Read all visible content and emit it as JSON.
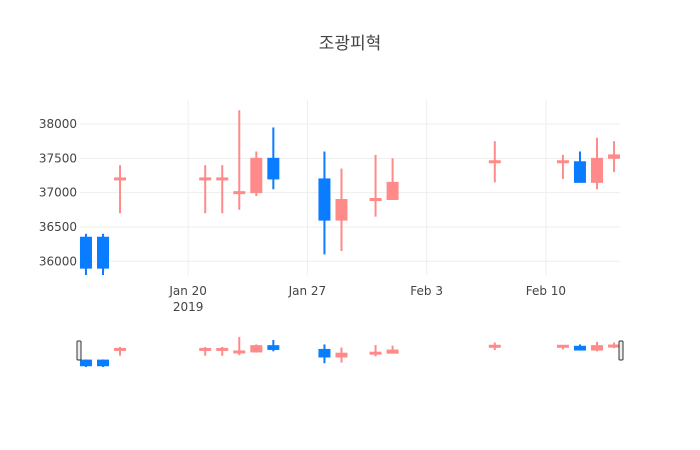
{
  "chart_data": {
    "type": "candlestick",
    "title": "조광피혁",
    "xlabel": "",
    "ylabel": "",
    "ylim": [
      35800,
      38350
    ],
    "y_ticks": [
      "36000",
      "36500",
      "37000",
      "37500",
      "38000"
    ],
    "x_tick_labels": [
      {
        "date": "2019-01-20",
        "label": "Jan 20",
        "sublabel": "2019"
      },
      {
        "date": "2019-01-27",
        "label": "Jan 27",
        "sublabel": ""
      },
      {
        "date": "2019-02-03",
        "label": "Feb 3",
        "sublabel": ""
      },
      {
        "date": "2019-02-10",
        "label": "Feb 10",
        "sublabel": ""
      }
    ],
    "xlim": [
      "2019-01-14",
      "2019-02-14"
    ],
    "grid": true,
    "rangeslider": true,
    "increasing_color": "#ff8a8a",
    "decreasing_color": "#0a7cff",
    "candles": [
      {
        "date": "2019-01-14",
        "open": 36350,
        "high": 36400,
        "low": 35800,
        "close": 35900
      },
      {
        "date": "2019-01-15",
        "open": 36350,
        "high": 36400,
        "low": 35800,
        "close": 35900
      },
      {
        "date": "2019-01-16",
        "open": 37200,
        "high": 37400,
        "low": 36700,
        "close": 37200
      },
      {
        "date": "2019-01-21",
        "open": 37200,
        "high": 37400,
        "low": 36700,
        "close": 37200
      },
      {
        "date": "2019-01-22",
        "open": 37200,
        "high": 37400,
        "low": 36700,
        "close": 37200
      },
      {
        "date": "2019-01-23",
        "open": 37000,
        "high": 38200,
        "low": 36750,
        "close": 37000
      },
      {
        "date": "2019-01-24",
        "open": 37000,
        "high": 37600,
        "low": 36950,
        "close": 37500
      },
      {
        "date": "2019-01-25",
        "open": 37500,
        "high": 37950,
        "low": 37050,
        "close": 37200
      },
      {
        "date": "2019-01-28",
        "open": 37200,
        "high": 37600,
        "low": 36100,
        "close": 36600
      },
      {
        "date": "2019-01-29",
        "open": 36600,
        "high": 37350,
        "low": 36150,
        "close": 36900
      },
      {
        "date": "2019-01-31",
        "open": 36900,
        "high": 37550,
        "low": 36650,
        "close": 36900
      },
      {
        "date": "2019-02-01",
        "open": 36900,
        "high": 37500,
        "low": 36900,
        "close": 37150
      },
      {
        "date": "2019-02-07",
        "open": 37450,
        "high": 37750,
        "low": 37150,
        "close": 37450
      },
      {
        "date": "2019-02-11",
        "open": 37450,
        "high": 37550,
        "low": 37200,
        "close": 37450
      },
      {
        "date": "2019-02-12",
        "open": 37450,
        "high": 37600,
        "low": 37150,
        "close": 37150
      },
      {
        "date": "2019-02-13",
        "open": 37150,
        "high": 37800,
        "low": 37050,
        "close": 37500
      },
      {
        "date": "2019-02-14",
        "open": 37500,
        "high": 37750,
        "low": 37300,
        "close": 37550
      }
    ]
  }
}
